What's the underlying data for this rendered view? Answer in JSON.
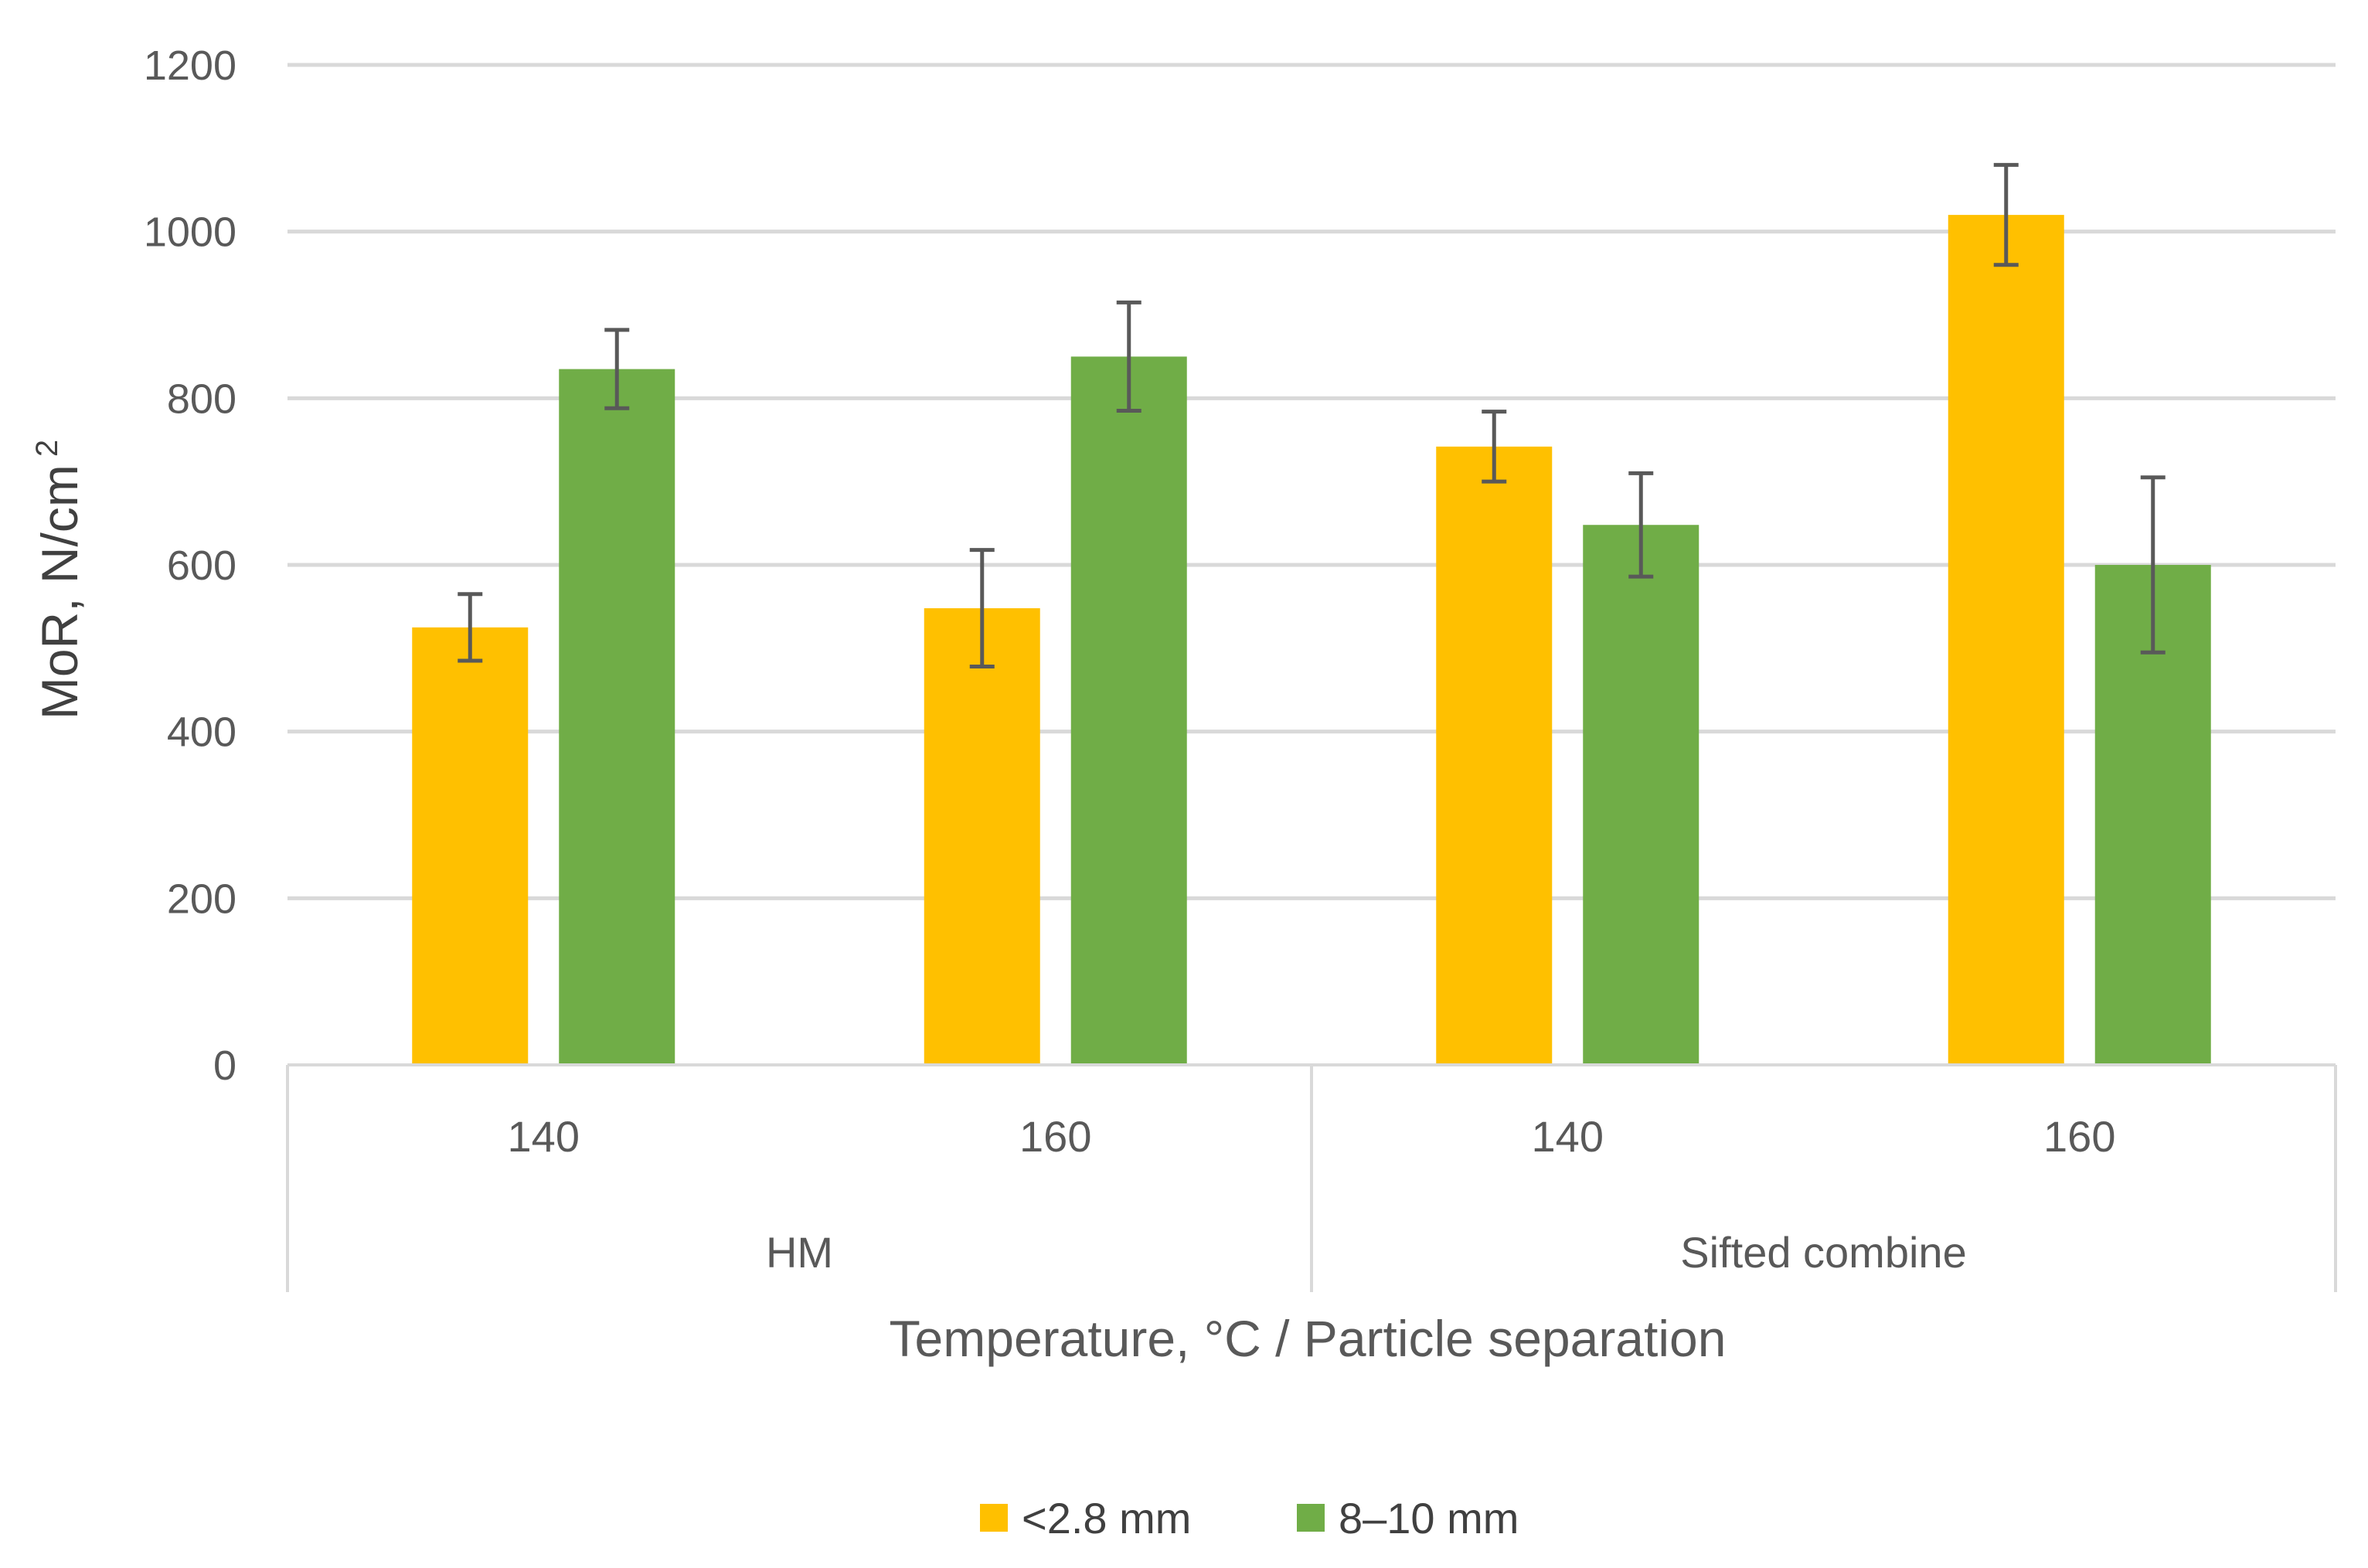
{
  "chart_data": {
    "type": "bar",
    "title": "",
    "xlabel": "Temperature, °C / Particle separation",
    "ylabel": "MoR, N/cm",
    "ylabel_superscript": "2",
    "ylim": [
      0,
      1200
    ],
    "yticks": [
      0,
      200,
      400,
      600,
      800,
      1000,
      1200
    ],
    "ytick_labels": [
      "0",
      "200",
      "400",
      "600",
      "800",
      "1000",
      "1200"
    ],
    "grid": true,
    "legend_position": "bottom",
    "groups": [
      "HM",
      "Sifted combine"
    ],
    "categories": [
      "140",
      "160",
      "140",
      "160"
    ],
    "category_group": [
      0,
      0,
      1,
      1
    ],
    "series": [
      {
        "name": "<2.8 mm",
        "color": "#FFC000",
        "values": [
          525,
          548,
          742,
          1020
        ],
        "errors": [
          40,
          70,
          42,
          60
        ]
      },
      {
        "name": "8–10 mm",
        "color": "#70AD47",
        "values": [
          835,
          850,
          648,
          600
        ],
        "errors": [
          47,
          65,
          62,
          105
        ]
      }
    ],
    "error_bar_color": "#595959"
  }
}
